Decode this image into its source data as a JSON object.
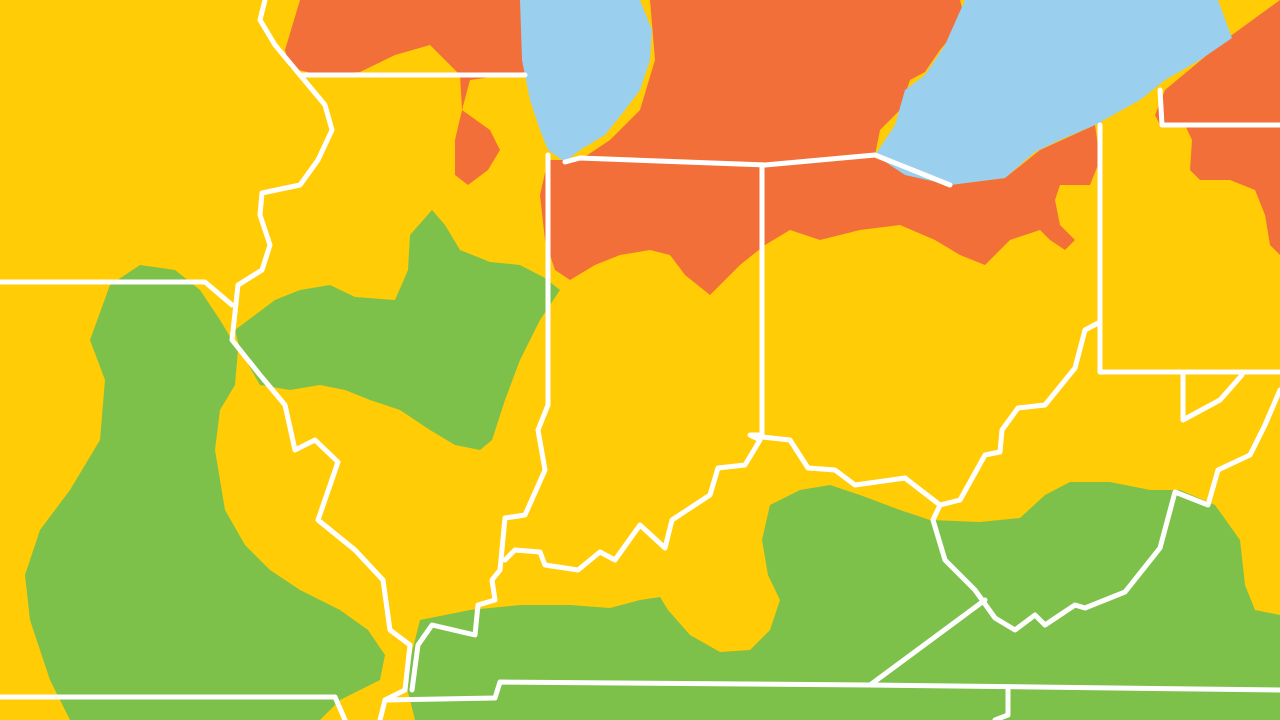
{
  "map": {
    "colors": {
      "background": "#FFCC05",
      "zone_yellow": "#FFCC05",
      "zone_orange": "#F36F3A",
      "zone_green": "#7DC14B",
      "water": "#9ACFEE",
      "borders": "#FFFFFF"
    },
    "zones": [
      "zone-orange",
      "zone-yellow",
      "zone-green"
    ],
    "water_bodies": [
      "lake-michigan",
      "lake-erie"
    ]
  }
}
